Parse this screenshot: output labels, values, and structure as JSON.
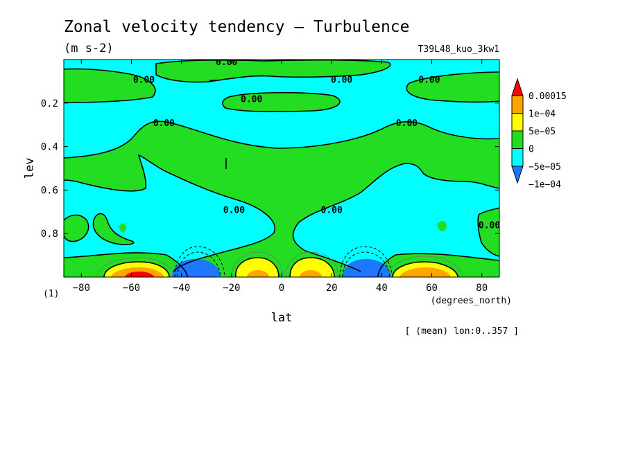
{
  "chart_data": {
    "type": "heatmap",
    "title": "Zonal velocity tendency — Turbulence",
    "subtitle": "(m s-2)",
    "run_label": "T39L48_kuo_3kw1",
    "xlabel": "lat",
    "xunit": "(degrees_north)",
    "ylabel": "lev",
    "yunit": "(1)",
    "footnote": "[ (mean) lon:0..357 ]",
    "xlim": [
      -87,
      87
    ],
    "ylim": [
      1.0,
      0.0
    ],
    "x_ticks": [
      -80,
      -60,
      -40,
      -20,
      0,
      20,
      40,
      60,
      80
    ],
    "x_tick_labels": [
      "−80",
      "−60",
      "−40",
      "−20",
      "0",
      "20",
      "40",
      "60",
      "80"
    ],
    "y_ticks": [
      0.2,
      0.4,
      0.6,
      0.8
    ],
    "y_tick_labels": [
      "0.2",
      "0.4",
      "0.6",
      "0.8"
    ],
    "contour_labels": [
      {
        "text": "0.00",
        "lat": -55,
        "lev": 0.09
      },
      {
        "text": "0.00",
        "lat": -22,
        "lev": 0.01
      },
      {
        "text": "0.00",
        "lat": 24,
        "lev": 0.09
      },
      {
        "text": "0.00",
        "lat": 59,
        "lev": 0.09
      },
      {
        "text": "0.00",
        "lat": -12,
        "lev": 0.18
      },
      {
        "text": "0.00",
        "lat": -47,
        "lev": 0.29
      },
      {
        "text": "0.00",
        "lat": 50,
        "lev": 0.29
      },
      {
        "text": "0.00",
        "lat": -19,
        "lev": 0.69
      },
      {
        "text": "0.00",
        "lat": 20,
        "lev": 0.69
      },
      {
        "text": "0.00",
        "lat": 83,
        "lev": 0.76
      }
    ],
    "colorbar": {
      "colors": [
        "#1e78ff",
        "#00ffff",
        "#22dd22",
        "#ffff00",
        "#ffa500",
        "#ff0000"
      ],
      "under_color": "#1e78ff",
      "over_color": "#ff0000",
      "levels": [
        -0.0001,
        -5e-05,
        0,
        5e-05,
        0.0001,
        0.00015
      ],
      "labels": [
        "−1e−04",
        "−5e−05",
        "0",
        "5e−05",
        "1e−04",
        "0.00015"
      ]
    },
    "field": {
      "background_value": -3e-05,
      "features": [
        {
          "lat": -32,
          "lev": 0.98,
          "value": -0.00012
        },
        {
          "lat": 32,
          "lev": 0.98,
          "value": -0.00012
        },
        {
          "lat": -58,
          "lev": 0.98,
          "value": 0.00014
        },
        {
          "lat": 57,
          "lev": 0.98,
          "value": 9e-05
        },
        {
          "lat": -10,
          "lev": 0.98,
          "value": 8e-05
        },
        {
          "lat": 10,
          "lev": 0.98,
          "value": 8e-05
        }
      ]
    }
  }
}
